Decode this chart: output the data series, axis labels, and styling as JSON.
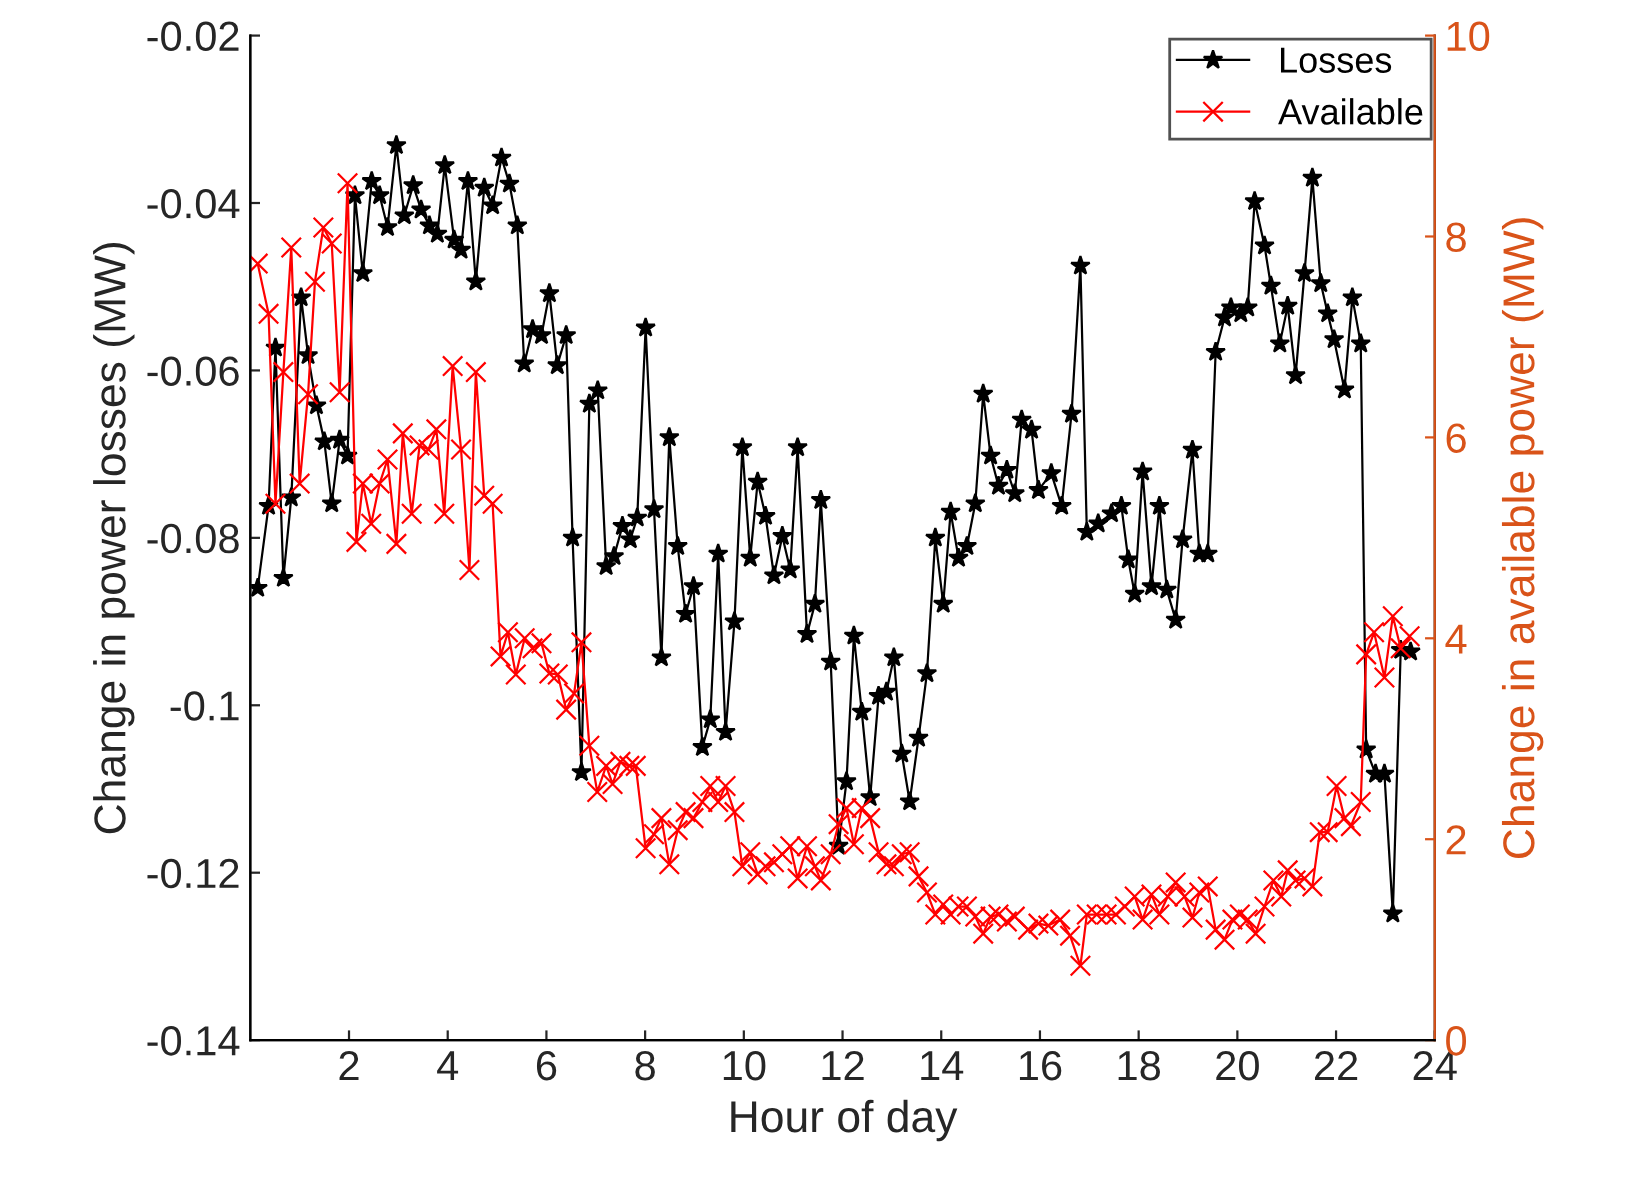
{
  "chart_data": {
    "type": "line",
    "xlabel": "Hour of day",
    "ylabel": "Change in power losses (MW)",
    "y2label": "Change in available power (MW)",
    "xlim": [
      0,
      24
    ],
    "xticks": [
      2,
      4,
      6,
      8,
      10,
      12,
      14,
      16,
      18,
      20,
      22,
      24
    ],
    "ylim": [
      -0.14,
      -0.02
    ],
    "yticks": [
      -0.14,
      -0.12,
      -0.1,
      -0.08,
      -0.06,
      -0.04,
      -0.02
    ],
    "y2lim": [
      0,
      10
    ],
    "y2ticks": [
      0,
      2,
      4,
      6,
      8,
      10
    ],
    "legend": "top right",
    "grid": false,
    "series": [
      {
        "name": "Losses",
        "color": "#000000",
        "marker": "star",
        "line_style": "solid",
        "x": [
          0.15,
          0.37,
          0.51,
          0.67,
          0.83,
          1.03,
          1.17,
          1.34,
          1.5,
          1.65,
          1.81,
          1.97,
          2.12,
          2.28,
          2.46,
          2.62,
          2.78,
          2.96,
          3.12,
          3.3,
          3.46,
          3.63,
          3.79,
          3.94,
          4.13,
          4.27,
          4.41,
          4.57,
          4.74,
          4.91,
          5.09,
          5.25,
          5.41,
          5.55,
          5.72,
          5.9,
          6.06,
          6.22,
          6.4,
          6.53,
          6.71,
          6.87,
          7.04,
          7.21,
          7.37,
          7.54,
          7.7,
          7.84,
          8.01,
          8.18,
          8.33,
          8.49,
          8.66,
          8.82,
          8.98,
          9.16,
          9.32,
          9.48,
          9.63,
          9.81,
          9.97,
          10.13,
          10.28,
          10.44,
          10.61,
          10.78,
          10.94,
          11.09,
          11.28,
          11.44,
          11.56,
          11.76,
          11.92,
          12.08,
          12.23,
          12.39,
          12.56,
          12.73,
          12.89,
          13.04,
          13.2,
          13.36,
          13.54,
          13.71,
          13.88,
          14.04,
          14.19,
          14.35,
          14.52,
          14.69,
          14.85,
          15.0,
          15.16,
          15.33,
          15.49,
          15.63,
          15.83,
          15.97,
          16.23,
          16.44,
          16.64,
          16.82,
          16.95,
          17.18,
          17.45,
          17.65,
          17.79,
          17.92,
          18.08,
          18.26,
          18.42,
          18.57,
          18.75,
          18.89,
          19.09,
          19.23,
          19.4,
          19.56,
          19.74,
          19.87,
          20.07,
          20.21,
          20.35,
          20.55,
          20.68,
          20.86,
          21.02,
          21.18,
          21.36,
          21.52,
          21.69,
          21.83,
          21.96,
          22.17,
          22.33,
          22.5,
          22.61,
          22.8,
          22.98,
          23.15,
          23.31,
          23.51
        ],
        "values": [
          -0.086,
          -0.0762,
          -0.0573,
          -0.0848,
          -0.0752,
          -0.0513,
          -0.0582,
          -0.0642,
          -0.0685,
          -0.0759,
          -0.0683,
          -0.0702,
          -0.0391,
          -0.0484,
          -0.0374,
          -0.0391,
          -0.0429,
          -0.0331,
          -0.0415,
          -0.0379,
          -0.0408,
          -0.0427,
          -0.0437,
          -0.0355,
          -0.0444,
          -0.0456,
          -0.0374,
          -0.0494,
          -0.0382,
          -0.0403,
          -0.0346,
          -0.0377,
          -0.0427,
          -0.0592,
          -0.0551,
          -0.0558,
          -0.0508,
          -0.0594,
          -0.0558,
          -0.08,
          -0.108,
          -0.064,
          -0.0624,
          -0.0834,
          -0.0822,
          -0.0786,
          -0.0802,
          -0.0776,
          -0.0549,
          -0.0766,
          -0.0943,
          -0.068,
          -0.081,
          -0.0891,
          -0.0858,
          -0.105,
          -0.1017,
          -0.0819,
          -0.1032,
          -0.09,
          -0.0692,
          -0.0824,
          -0.0733,
          -0.0774,
          -0.0845,
          -0.0798,
          -0.0838,
          -0.0692,
          -0.0915,
          -0.0879,
          -0.0755,
          -0.0948,
          -0.1168,
          -0.1091,
          -0.0917,
          -0.1008,
          -0.111,
          -0.0989,
          -0.0984,
          -0.0943,
          -0.1058,
          -0.1115,
          -0.1039,
          -0.0962,
          -0.08,
          -0.0879,
          -0.0769,
          -0.0824,
          -0.081,
          -0.0759,
          -0.0628,
          -0.0702,
          -0.0738,
          -0.0719,
          -0.0747,
          -0.0659,
          -0.0671,
          -0.0743,
          -0.0723,
          -0.0762,
          -0.0652,
          -0.0475,
          -0.0793,
          -0.0783,
          -0.0771,
          -0.0762,
          -0.0826,
          -0.0867,
          -0.0721,
          -0.0858,
          -0.0762,
          -0.0862,
          -0.0898,
          -0.0802,
          -0.0695,
          -0.0819,
          -0.0819,
          -0.0578,
          -0.0537,
          -0.0525,
          -0.0532,
          -0.0525,
          -0.0398,
          -0.0451,
          -0.0499,
          -0.0568,
          -0.0523,
          -0.0606,
          -0.0484,
          -0.037,
          -0.0496,
          -0.0532,
          -0.0563,
          -0.0623,
          -0.0513,
          -0.0568,
          -0.1053,
          -0.1082,
          -0.1082,
          -0.1249,
          -0.0934,
          -0.0936
        ]
      },
      {
        "name": "Available",
        "color": "#ff0000",
        "marker": "cross",
        "line_style": "solid",
        "axis": "y2",
        "x": [
          0.15,
          0.37,
          0.51,
          0.67,
          0.83,
          1.0,
          1.17,
          1.31,
          1.48,
          1.65,
          1.81,
          1.97,
          2.15,
          2.28,
          2.45,
          2.62,
          2.78,
          2.96,
          3.09,
          3.27,
          3.43,
          3.61,
          3.77,
          3.93,
          4.1,
          4.27,
          4.44,
          4.57,
          4.74,
          4.91,
          5.07,
          5.22,
          5.38,
          5.56,
          5.72,
          5.9,
          6.06,
          6.23,
          6.4,
          6.56,
          6.71,
          6.87,
          7.03,
          7.21,
          7.34,
          7.5,
          7.68,
          7.81,
          8.01,
          8.18,
          8.33,
          8.49,
          8.66,
          8.82,
          8.98,
          9.16,
          9.32,
          9.48,
          9.63,
          9.81,
          9.97,
          10.13,
          10.28,
          10.44,
          10.61,
          10.78,
          10.94,
          11.09,
          11.28,
          11.44,
          11.56,
          11.76,
          11.92,
          12.08,
          12.23,
          12.39,
          12.56,
          12.73,
          12.89,
          13.04,
          13.2,
          13.36,
          13.54,
          13.71,
          13.88,
          14.04,
          14.19,
          14.35,
          14.52,
          14.69,
          14.85,
          15.0,
          15.16,
          15.33,
          15.49,
          15.76,
          15.97,
          16.17,
          16.41,
          16.61,
          16.82,
          16.95,
          17.15,
          17.35,
          17.54,
          17.72,
          17.92,
          18.08,
          18.26,
          18.42,
          18.59,
          18.75,
          18.93,
          19.09,
          19.23,
          19.4,
          19.56,
          19.74,
          19.9,
          20.05,
          20.21,
          20.37,
          20.55,
          20.73,
          20.89,
          21.02,
          21.18,
          21.36,
          21.52,
          21.67,
          21.83,
          22.01,
          22.17,
          22.3,
          22.5,
          22.61,
          22.77,
          22.98,
          23.15,
          23.31,
          23.49
        ],
        "values": [
          7.73,
          7.23,
          5.34,
          6.65,
          7.89,
          5.54,
          6.43,
          7.55,
          8.09,
          7.93,
          6.45,
          8.53,
          4.96,
          5.54,
          5.14,
          5.54,
          5.78,
          4.94,
          6.04,
          5.24,
          5.92,
          5.88,
          6.08,
          5.24,
          6.71,
          5.88,
          4.68,
          6.65,
          5.42,
          5.34,
          3.82,
          4.06,
          3.64,
          4.0,
          3.9,
          3.95,
          3.65,
          3.64,
          3.29,
          3.45,
          3.96,
          2.93,
          2.47,
          2.73,
          2.55,
          2.77,
          2.73,
          2.73,
          1.91,
          2.05,
          2.21,
          1.75,
          2.09,
          2.27,
          2.21,
          2.37,
          2.53,
          2.37,
          2.53,
          2.27,
          1.73,
          1.87,
          1.65,
          1.73,
          1.77,
          1.85,
          1.93,
          1.61,
          1.93,
          1.73,
          1.59,
          1.85,
          2.15,
          2.31,
          1.95,
          2.31,
          2.21,
          1.87,
          1.75,
          1.73,
          1.85,
          1.87,
          1.63,
          1.47,
          1.25,
          1.35,
          1.25,
          1.33,
          1.33,
          1.23,
          1.06,
          1.23,
          1.25,
          1.18,
          1.23,
          1.1,
          1.16,
          1.14,
          1.2,
          1.04,
          0.74,
          1.25,
          1.25,
          1.25,
          1.25,
          1.33,
          1.43,
          1.2,
          1.45,
          1.25,
          1.43,
          1.57,
          1.43,
          1.22,
          1.47,
          1.53,
          1.1,
          1.0,
          1.2,
          1.25,
          1.2,
          1.06,
          1.33,
          1.59,
          1.43,
          1.69,
          1.59,
          1.61,
          1.53,
          2.07,
          2.07,
          2.53,
          2.21,
          2.13,
          2.37,
          3.84,
          4.06,
          3.61,
          4.22,
          3.9,
          4.02
        ]
      }
    ]
  }
}
